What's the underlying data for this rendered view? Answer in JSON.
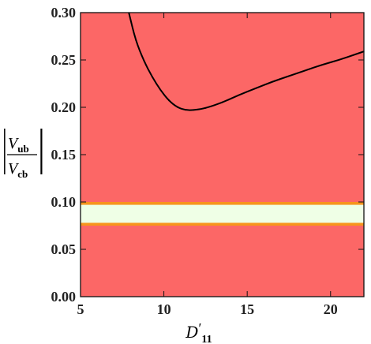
{
  "chart_data": {
    "type": "line",
    "title": "",
    "xlabel": {
      "script": "D",
      "prime": "′",
      "subscript": "11"
    },
    "ylabel": {
      "numerator": "V",
      "numerator_sub": "ub",
      "denominator": "V",
      "denominator_sub": "cb",
      "delimiter": "|"
    },
    "xlim": [
      5,
      22
    ],
    "ylim": [
      0,
      0.3
    ],
    "x_ticks": [
      "5",
      "10",
      "15",
      "20"
    ],
    "x_tick_values": [
      5,
      10,
      15,
      20
    ],
    "y_ticks": [
      "0.00",
      "0.05",
      "0.10",
      "0.15",
      "0.20",
      "0.25",
      "0.30"
    ],
    "y_tick_values": [
      0,
      0.05,
      0.1,
      0.15,
      0.2,
      0.25,
      0.3
    ],
    "grid": false,
    "regions": [
      {
        "name": "excluded",
        "ymin": 0.0,
        "ymax": 0.3,
        "color": "#fc6766"
      },
      {
        "name": "outer-band",
        "ymin": 0.075,
        "ymax": 0.1,
        "color": "#f7941d"
      },
      {
        "name": "inner-band",
        "ymin": 0.078,
        "ymax": 0.097,
        "color": "#efffe6"
      }
    ],
    "series": [
      {
        "color": "#000000",
        "x": [
          7.9,
          8.3,
          8.8,
          9.3,
          9.8,
          10.3,
          10.8,
          11.3,
          11.8,
          12.5,
          13.5,
          14.5,
          15.5,
          16.5,
          17.5,
          18.5,
          19.5,
          20.5,
          21.5,
          22.0
        ],
        "y": [
          0.3,
          0.271,
          0.249,
          0.232,
          0.218,
          0.207,
          0.2,
          0.197,
          0.197,
          0.199,
          0.205,
          0.213,
          0.22,
          0.227,
          0.233,
          0.239,
          0.245,
          0.25,
          0.256,
          0.259
        ]
      }
    ]
  }
}
